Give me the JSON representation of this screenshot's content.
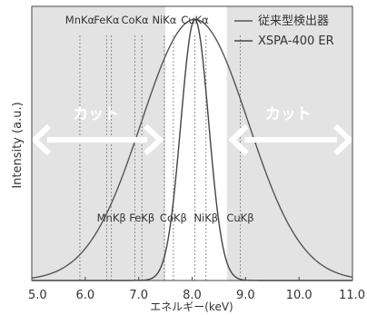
{
  "chart_data": {
    "type": "line",
    "xlabel": "エネルギー(keV)",
    "ylabel": "Intensity (a.u.)",
    "xlim": [
      5.0,
      11.0
    ],
    "ylim": [
      0,
      1.05
    ],
    "x_ticks": [
      "5.0",
      "6.0",
      "7.0",
      "8.0",
      "9.0",
      "10.0",
      "11.0"
    ],
    "cut_regions": [
      [
        5.0,
        7.5
      ],
      [
        8.65,
        11.0
      ]
    ],
    "cut_label": "カット",
    "alpha_lines": [
      {
        "label": "MnKα",
        "x": 5.9
      },
      {
        "label": "FeKα",
        "x": 6.4
      },
      {
        "label": "CoKα",
        "x": 6.93
      },
      {
        "label": "NiKα",
        "x": 7.48
      },
      {
        "label": "CuKα",
        "x": 8.05
      }
    ],
    "beta_lines": [
      {
        "label": "MnKβ",
        "x": 6.49
      },
      {
        "label": "FeKβ",
        "x": 7.06
      },
      {
        "label": "CoKβ",
        "x": 7.65
      },
      {
        "label": "NiKβ",
        "x": 8.26
      },
      {
        "label": "CuKβ",
        "x": 8.9
      }
    ],
    "series": [
      {
        "name": "従来型検出器",
        "type": "gaussian",
        "center": 8.05,
        "sigma": 1.0,
        "peak": 1.0,
        "color": "#555555"
      },
      {
        "name": "XSPA-400 ER",
        "type": "gaussian",
        "center": 8.05,
        "sigma": 0.26,
        "peak": 1.0,
        "color": "#444444"
      }
    ],
    "legend_position": "top-right",
    "colors": {
      "cut_shade": "#e3e3e3",
      "arrow": "#ffffff",
      "line_marker": "#777777"
    }
  }
}
